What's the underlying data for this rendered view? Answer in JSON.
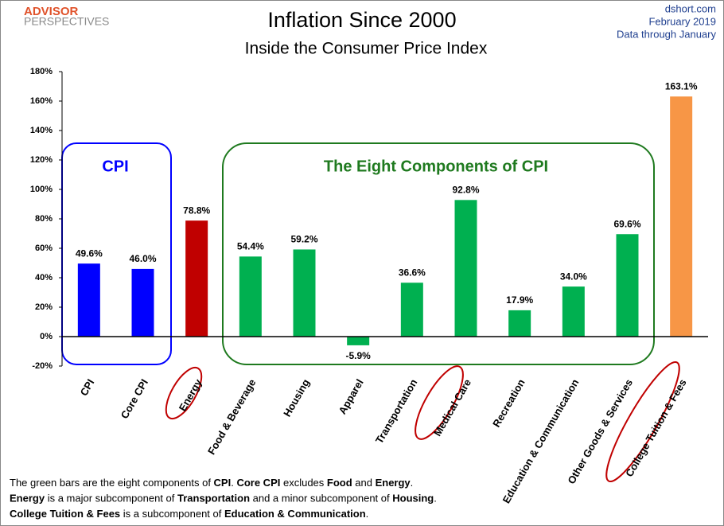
{
  "logo": [
    "ADVISOR",
    "PERSPECTIVES"
  ],
  "source": [
    "dshort.com",
    "February 2019",
    "Data through January"
  ],
  "chart_data": {
    "type": "bar",
    "title": "Inflation Since 2000",
    "subtitle": "Inside the Consumer Price Index",
    "categories": [
      "CPI",
      "Core CPI",
      "Energy",
      "Food & Beverage",
      "Housing",
      "Apparel",
      "Transportation",
      "Medical Care",
      "Recreation",
      "Education & Communication",
      "Other Goods & Services",
      "College Tuition & Fees"
    ],
    "values": [
      49.6,
      46.0,
      78.8,
      54.4,
      59.2,
      -5.9,
      36.6,
      92.8,
      17.9,
      34.0,
      69.6,
      163.1
    ],
    "value_labels": [
      "49.6%",
      "46.0%",
      "78.8%",
      "54.4%",
      "59.2%",
      "-5.9%",
      "36.6%",
      "92.8%",
      "17.9%",
      "34.0%",
      "69.6%",
      "163.1%"
    ],
    "colors": [
      "#0000ff",
      "#0000ff",
      "#c00000",
      "#00b050",
      "#00b050",
      "#00b050",
      "#00b050",
      "#00b050",
      "#00b050",
      "#00b050",
      "#00b050",
      "#f79646"
    ],
    "ylim": [
      -20,
      180
    ],
    "yticks": [
      {
        "value": -20,
        "label": "-20%"
      },
      {
        "value": 0,
        "label": "0%"
      },
      {
        "value": 20,
        "label": "20%"
      },
      {
        "value": 40,
        "label": "40%"
      },
      {
        "value": 60,
        "label": "60%"
      },
      {
        "value": 80,
        "label": "80%"
      },
      {
        "value": 100,
        "label": "100%"
      },
      {
        "value": 120,
        "label": "120%"
      },
      {
        "value": 140,
        "label": "140%"
      },
      {
        "value": 160,
        "label": "160%"
      },
      {
        "value": 180,
        "label": "180%"
      }
    ],
    "grid": false,
    "annotations": [
      "CPI",
      "The Eight Components of CPI"
    ]
  },
  "footnote": [
    [
      {
        "text": "The green bars are the eight components of ",
        "bold": false
      },
      {
        "text": "CPI",
        "bold": true
      },
      {
        "text": ". ",
        "bold": false
      },
      {
        "text": "Core CPI",
        "bold": true
      },
      {
        "text": " excludes ",
        "bold": false
      },
      {
        "text": "Food",
        "bold": true
      },
      {
        "text": " and ",
        "bold": false
      },
      {
        "text": "Energy",
        "bold": true
      },
      {
        "text": ".",
        "bold": false
      }
    ],
    [
      {
        "text": "Energy",
        "bold": true
      },
      {
        "text": " is a  major subcomponent of ",
        "bold": false
      },
      {
        "text": "Transportation",
        "bold": true
      },
      {
        "text": " and a minor subcomponent of ",
        "bold": false
      },
      {
        "text": "Housing",
        "bold": true
      },
      {
        "text": ".",
        "bold": false
      }
    ],
    [
      {
        "text": "College Tuition & Fees",
        "bold": true
      },
      {
        "text": " is a subcomponent of ",
        "bold": false
      },
      {
        "text": "Education & Communication",
        "bold": true
      },
      {
        "text": ".",
        "bold": false
      }
    ]
  ]
}
